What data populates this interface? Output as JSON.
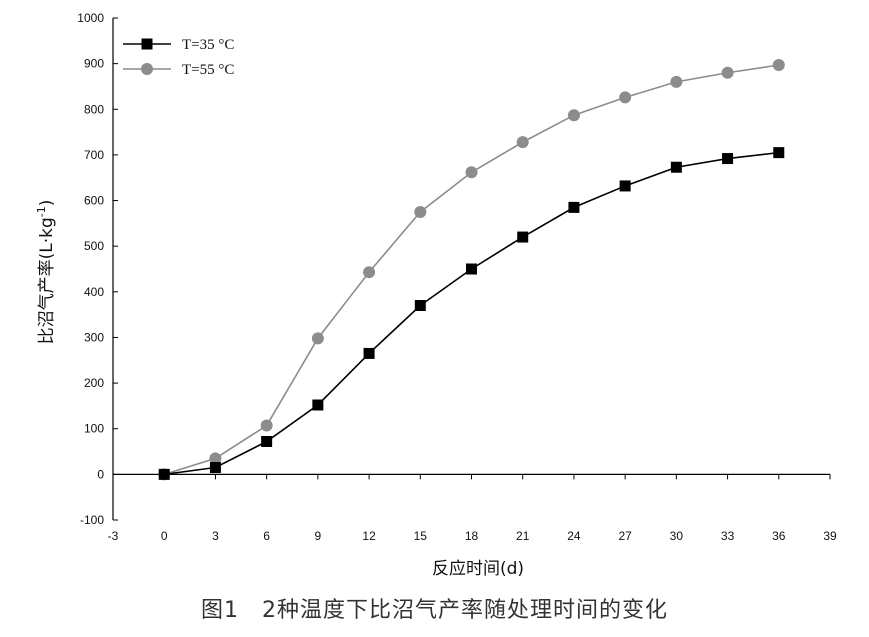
{
  "caption": "图1　2种温度下比沼气产率随处理时间的变化",
  "chart_data": {
    "type": "line",
    "xlabel": "反应时间(d)",
    "ylabel_main": "比沼气产率(L·kg",
    "ylabel_sup": "-1",
    "ylabel_close": ")",
    "xlim": [
      -3,
      39
    ],
    "ylim": [
      -100,
      1000
    ],
    "xticks": [
      -3,
      0,
      3,
      6,
      9,
      12,
      15,
      18,
      21,
      24,
      27,
      30,
      33,
      36,
      39
    ],
    "yticks": [
      -100,
      0,
      100,
      200,
      300,
      400,
      500,
      600,
      700,
      800,
      900,
      1000
    ],
    "grid": false,
    "legend_position": "top-left",
    "x": [
      0,
      3,
      6,
      9,
      12,
      15,
      18,
      21,
      24,
      27,
      30,
      33,
      36
    ],
    "series": [
      {
        "name": "T=35 °C",
        "marker": "square",
        "color": "#000000",
        "values": [
          0,
          15,
          72,
          152,
          265,
          370,
          450,
          520,
          585,
          632,
          673,
          692,
          705
        ]
      },
      {
        "name": "T=55 °C",
        "marker": "circle",
        "color": "#8c8c8c",
        "values": [
          0,
          35,
          107,
          298,
          443,
          575,
          662,
          728,
          787,
          826,
          860,
          880,
          897
        ]
      }
    ]
  }
}
